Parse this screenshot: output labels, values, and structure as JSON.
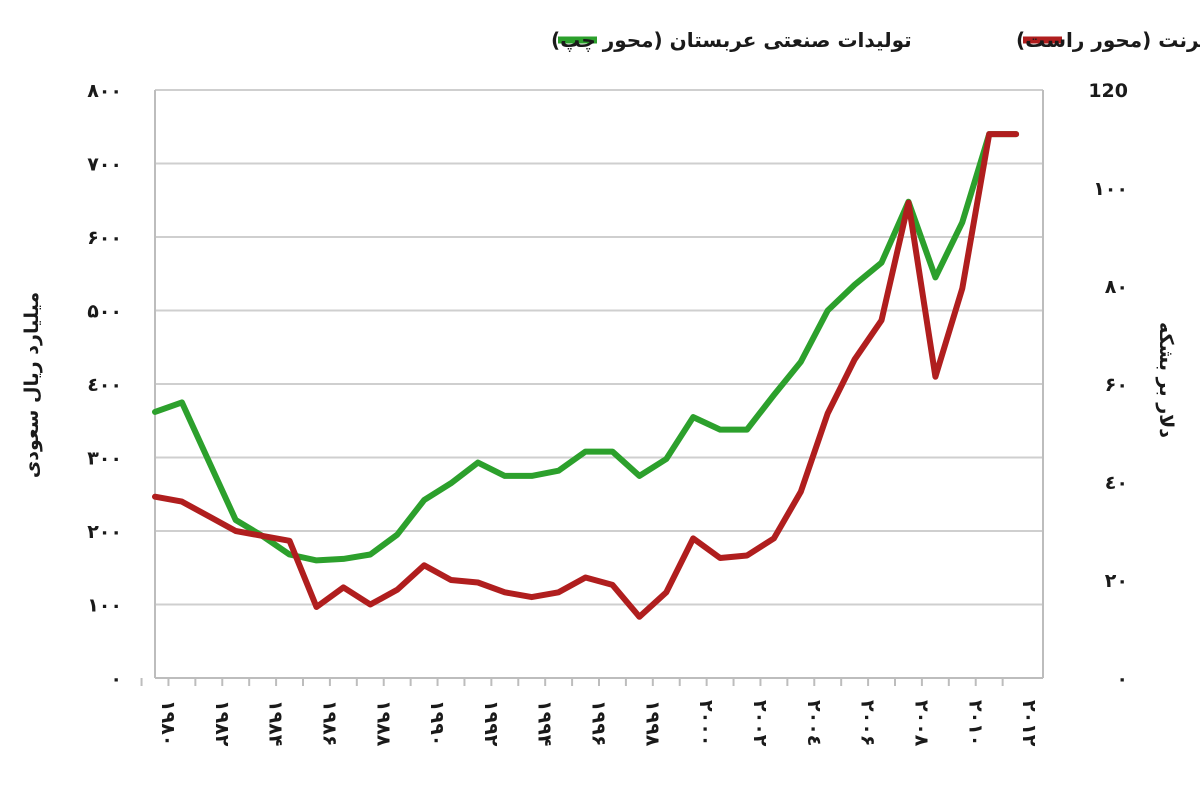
{
  "chart_data": {
    "type": "line",
    "title": "",
    "x": [
      1980,
      1981,
      1982,
      1983,
      1984,
      1985,
      1986,
      1987,
      1988,
      1989,
      1990,
      1991,
      1992,
      1993,
      1994,
      1995,
      1996,
      1997,
      1998,
      1999,
      2000,
      2001,
      2002,
      2003,
      2004,
      2005,
      2006,
      2007,
      2008,
      2009,
      2010,
      2011,
      2012
    ],
    "x_tick_labels": [
      {
        "x": 1980,
        "label": "۱۹۸۰"
      },
      {
        "x": 1982,
        "label": "۱۹۸۲"
      },
      {
        "x": 1984,
        "label": "۱۹۸۴"
      },
      {
        "x": 1986,
        "label": "۱۹۸۶"
      },
      {
        "x": 1988,
        "label": "۱۹۸۸"
      },
      {
        "x": 1990,
        "label": "۱۹۹۰"
      },
      {
        "x": 1992,
        "label": "۱۹۹۲"
      },
      {
        "x": 1994,
        "label": "۱۹۹۴"
      },
      {
        "x": 1996,
        "label": "۱۹۹۶"
      },
      {
        "x": 1998,
        "label": "۱۹۹۸"
      },
      {
        "x": 2000,
        "label": "۲۰۰۰"
      },
      {
        "x": 2002,
        "label": "۲۰۰۲"
      },
      {
        "x": 2004,
        "label": "۲۰۰٤"
      },
      {
        "x": 2006,
        "label": "۲۰۰۶"
      },
      {
        "x": 2008,
        "label": "۲۰۰۸"
      },
      {
        "x": 2010,
        "label": "۲۰۱۰"
      },
      {
        "x": 2012,
        "label": "۲۰۱۲"
      }
    ],
    "xlim": [
      1980,
      2013
    ],
    "y_left": {
      "label": "میلیارد ریال سعودی",
      "range": [
        0,
        800
      ],
      "ticks": [
        0,
        100,
        200,
        300,
        400,
        500,
        600,
        700,
        800
      ],
      "tick_labels": [
        "۰",
        "۱۰۰",
        "۲۰۰",
        "۳۰۰",
        "٤۰۰",
        "۵۰۰",
        "۶۰۰",
        "۷۰۰",
        "۸۰۰"
      ]
    },
    "y_right": {
      "label": "دلار بر بشکه",
      "range": [
        0,
        120
      ],
      "ticks": [
        0,
        20,
        40,
        60,
        80,
        100,
        120
      ],
      "tick_labels": [
        "۰",
        "۲۰",
        "٤۰",
        "۶۰",
        "۸۰",
        "۱۰۰",
        "120"
      ]
    },
    "grid": true,
    "legend_position": "top",
    "series": [
      {
        "name": "تولیدات صنعتی عربستان (محور چپ)",
        "axis": "left",
        "color": "#2ca02c",
        "values": [
          362,
          375,
          295,
          215,
          193,
          168,
          160,
          162,
          168,
          195,
          242,
          265,
          293,
          275,
          275,
          282,
          308,
          308,
          275,
          298,
          355,
          338,
          338,
          385,
          430,
          500,
          535,
          565,
          648,
          545,
          620,
          740,
          740
        ]
      },
      {
        "name": "قیمت اسمی نفت برنت (محور راست)",
        "axis": "right",
        "color": "#b01e1e",
        "values": [
          37,
          36,
          33,
          30,
          29,
          28,
          14.5,
          18.5,
          15,
          18,
          23,
          20,
          19.5,
          17.5,
          16.5,
          17.5,
          20.5,
          19,
          12.5,
          17.5,
          28.5,
          24.5,
          25,
          28.5,
          38,
          54,
          65,
          73,
          97,
          61.5,
          79.5,
          111,
          111
        ]
      }
    ]
  }
}
